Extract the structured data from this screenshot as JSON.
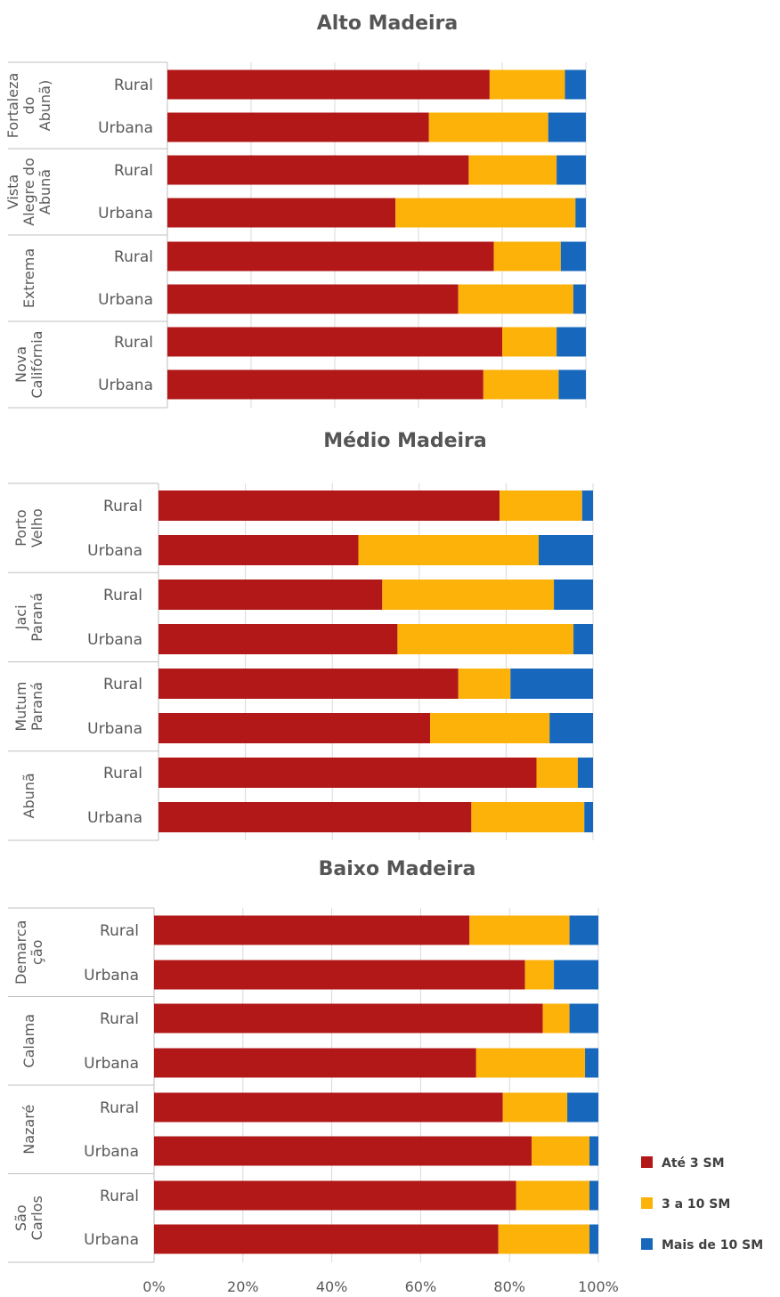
{
  "chart_data": [
    {
      "type": "bar",
      "orientation": "horizontal",
      "stacked": true,
      "normalized_100": true,
      "title": "Alto Madeira",
      "groups": [
        {
          "label": "Fortaleza do Abunã)",
          "lines": [
            "Fortaleza",
            "do",
            "Abunã)"
          ],
          "categories": [
            "Rural",
            "Urbana"
          ]
        },
        {
          "label": "Vista Alegre do Abunã",
          "lines": [
            "Vista",
            "Alegre do",
            "Abunã"
          ],
          "categories": [
            "Rural",
            "Urbana"
          ]
        },
        {
          "label": "Extrema",
          "lines": [
            "Extrema"
          ],
          "categories": [
            "Rural",
            "Urbana"
          ]
        },
        {
          "label": "Nova Califórnia",
          "lines": [
            "Nova",
            "Califórnia"
          ],
          "categories": [
            "Rural",
            "Urbana"
          ]
        }
      ],
      "series": [
        {
          "name": "Até 3 SM",
          "values": [
            77,
            62.5,
            72,
            54.5,
            78,
            69.5,
            80,
            75.5
          ]
        },
        {
          "name": "3 a 10 SM",
          "values": [
            18,
            28.5,
            21,
            43,
            16,
            27.5,
            13,
            18
          ]
        },
        {
          "name": "Mais de 10 SM",
          "values": [
            5,
            9,
            7,
            2.5,
            6,
            3,
            7,
            6.5
          ]
        }
      ],
      "xlim": [
        0,
        100
      ]
    },
    {
      "type": "bar",
      "orientation": "horizontal",
      "stacked": true,
      "normalized_100": true,
      "title": "Médio Madeira",
      "groups": [
        {
          "label": "Porto Velho",
          "lines": [
            "Porto",
            "Velho"
          ],
          "categories": [
            "Rural",
            "Urbana"
          ]
        },
        {
          "label": "Jaci Paraná",
          "lines": [
            "Jaci",
            "Paraná"
          ],
          "categories": [
            "Rural",
            "Urbana"
          ]
        },
        {
          "label": "Mutum Paraná",
          "lines": [
            "Mutum",
            "Paraná"
          ],
          "categories": [
            "Rural",
            "Urbana"
          ]
        },
        {
          "label": "Abunã",
          "lines": [
            "Abunã"
          ],
          "categories": [
            "Rural",
            "Urbana"
          ]
        }
      ],
      "series": [
        {
          "name": "Até 3 SM",
          "values": [
            78.5,
            46,
            51.5,
            55,
            69,
            62.5,
            87,
            72
          ]
        },
        {
          "name": "3 a 10 SM",
          "values": [
            19,
            41.5,
            39.5,
            40.5,
            12,
            27.5,
            9.5,
            26
          ]
        },
        {
          "name": "Mais de 10 SM",
          "values": [
            2.5,
            12.5,
            9,
            4.5,
            19,
            10,
            3.5,
            2
          ]
        }
      ],
      "xlim": [
        0,
        100
      ]
    },
    {
      "type": "bar",
      "orientation": "horizontal",
      "stacked": true,
      "normalized_100": true,
      "title": "Baixo Madeira",
      "groups": [
        {
          "label": "Demarcação",
          "lines": [
            "Demarca",
            "ção"
          ],
          "categories": [
            "Rural",
            "Urbana"
          ]
        },
        {
          "label": "Calama",
          "lines": [
            "Calama"
          ],
          "categories": [
            "Rural",
            "Urbana"
          ]
        },
        {
          "label": "Nazaré",
          "lines": [
            "Nazaré"
          ],
          "categories": [
            "Rural",
            "Urbana"
          ]
        },
        {
          "label": "São Carlos",
          "lines": [
            "São",
            "Carlos"
          ],
          "categories": [
            "Rural",
            "Urbana"
          ]
        }
      ],
      "series": [
        {
          "name": "Até 3 SM",
          "values": [
            71,
            83.5,
            87.5,
            72.5,
            78.5,
            85,
            81.5,
            77.5
          ]
        },
        {
          "name": "3 a 10 SM",
          "values": [
            22.5,
            6.5,
            6,
            24.5,
            14.5,
            13,
            16.5,
            20.5
          ]
        },
        {
          "name": "Mais de 10 SM",
          "values": [
            6.5,
            10,
            6.5,
            3,
            7,
            2,
            2,
            2
          ]
        }
      ],
      "xlim": [
        0,
        100
      ]
    }
  ],
  "x_ticks": [
    "0%",
    "20%",
    "40%",
    "60%",
    "80%",
    "100%"
  ],
  "legend": {
    "placement": "bottom-right",
    "items": [
      "Até  3 SM",
      "3 a 10 SM",
      "Mais de 10 SM"
    ]
  },
  "colors": {
    "Até 3 SM": "#B21818",
    "3 a 10 SM": "#FDB20A",
    "Mais de 10 SM": "#1768BD",
    "grid": "#D9D9D9",
    "axis": "#BFBFBF",
    "label_border": "#BFBFBF"
  }
}
